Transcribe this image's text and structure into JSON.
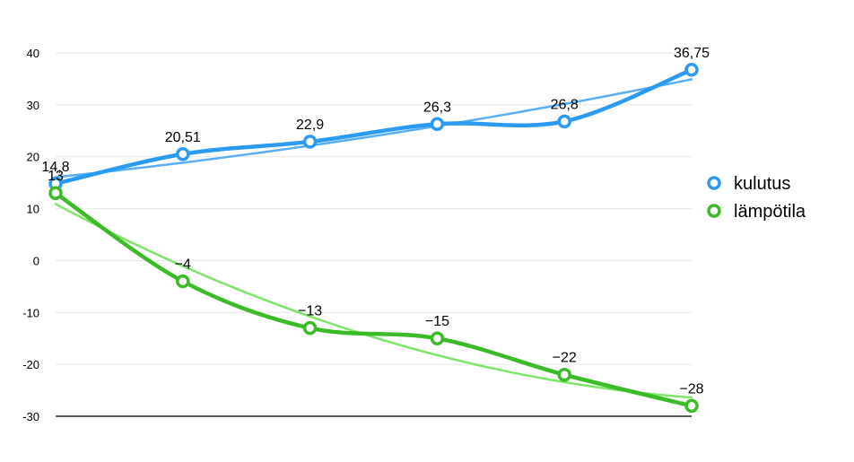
{
  "chart_data": {
    "type": "line",
    "x": [
      1,
      2,
      3,
      4,
      5,
      6
    ],
    "ylim": [
      -30,
      40
    ],
    "yticks": [
      40,
      30,
      20,
      10,
      0,
      -10,
      -20,
      -30
    ],
    "ytick_labels": [
      "40",
      "30",
      "20",
      "10",
      "0",
      "-10",
      "-20",
      "-30"
    ],
    "grid": "horizontal",
    "legend_position": "right",
    "series": [
      {
        "name": "kulutus",
        "color": "#2b9af3",
        "trend_color": "#5aaef5",
        "values": [
          14.8,
          20.51,
          22.9,
          26.3,
          26.8,
          36.75
        ],
        "labels": [
          "14,8",
          "20,51",
          "22,9",
          "26,3",
          "26,8",
          "36,75"
        ]
      },
      {
        "name": "lämpötila",
        "color": "#3cbb29",
        "trend_color": "#7ee46a",
        "values": [
          13,
          -4,
          -13,
          -15,
          -22,
          -28
        ],
        "labels": [
          "13",
          "−4",
          "−13",
          "−15",
          "−22",
          "−28"
        ]
      }
    ]
  }
}
